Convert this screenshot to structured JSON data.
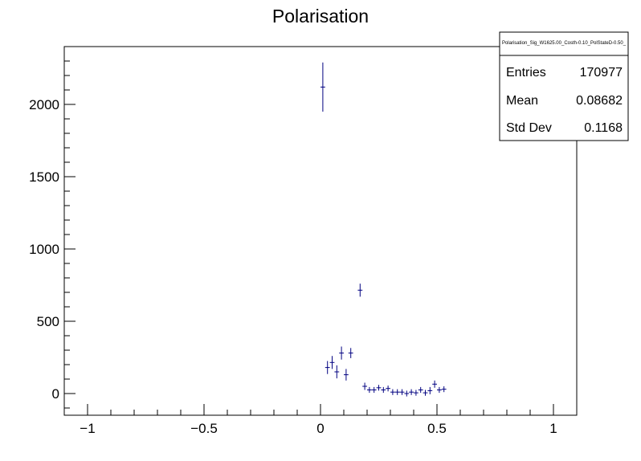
{
  "chart_data": {
    "type": "scatter",
    "title": "Polarisation",
    "xlabel": "",
    "ylabel": "",
    "xlim": [
      -1.1,
      1.1
    ],
    "ylim": [
      -150,
      2400
    ],
    "x_ticks": [
      {
        "value": -1,
        "label": "−1"
      },
      {
        "value": -0.5,
        "label": "−0.5"
      },
      {
        "value": 0,
        "label": "0"
      },
      {
        "value": 0.5,
        "label": "0.5"
      },
      {
        "value": 1,
        "label": "1"
      }
    ],
    "y_ticks": [
      {
        "value": 0,
        "label": "0"
      },
      {
        "value": 500,
        "label": "500"
      },
      {
        "value": 1000,
        "label": "1000"
      },
      {
        "value": 1500,
        "label": "1500"
      },
      {
        "value": 2000,
        "label": "2000"
      }
    ],
    "bin_width": 0.02,
    "series": [
      {
        "color": "#000080",
        "points": [
          {
            "x": 0.01,
            "y": 2120,
            "err": 170
          },
          {
            "x": 0.03,
            "y": 180,
            "err": 45
          },
          {
            "x": 0.05,
            "y": 215,
            "err": 45
          },
          {
            "x": 0.07,
            "y": 150,
            "err": 45
          },
          {
            "x": 0.09,
            "y": 280,
            "err": 45
          },
          {
            "x": 0.11,
            "y": 130,
            "err": 40
          },
          {
            "x": 0.13,
            "y": 280,
            "err": 35
          },
          {
            "x": 0.17,
            "y": 715,
            "err": 45
          },
          {
            "x": 0.19,
            "y": 50,
            "err": 25
          },
          {
            "x": 0.21,
            "y": 25,
            "err": 20
          },
          {
            "x": 0.23,
            "y": 25,
            "err": 20
          },
          {
            "x": 0.25,
            "y": 40,
            "err": 20
          },
          {
            "x": 0.27,
            "y": 25,
            "err": 20
          },
          {
            "x": 0.29,
            "y": 35,
            "err": 20
          },
          {
            "x": 0.31,
            "y": 10,
            "err": 20
          },
          {
            "x": 0.33,
            "y": 10,
            "err": 20
          },
          {
            "x": 0.35,
            "y": 10,
            "err": 20
          },
          {
            "x": 0.37,
            "y": 0,
            "err": 20
          },
          {
            "x": 0.39,
            "y": 10,
            "err": 20
          },
          {
            "x": 0.41,
            "y": 5,
            "err": 20
          },
          {
            "x": 0.43,
            "y": 25,
            "err": 20
          },
          {
            "x": 0.45,
            "y": 5,
            "err": 20
          },
          {
            "x": 0.47,
            "y": 20,
            "err": 25
          },
          {
            "x": 0.49,
            "y": 65,
            "err": 25
          },
          {
            "x": 0.51,
            "y": 25,
            "err": 20
          },
          {
            "x": 0.53,
            "y": 30,
            "err": 20
          }
        ]
      }
    ],
    "stats": {
      "name": "Polarisation_Sig_W1625.00_Costh-0.10_PolStateD-0.50_",
      "rows": [
        {
          "label": "Entries",
          "value": "170977"
        },
        {
          "label": "Mean",
          "value": "0.08682"
        },
        {
          "label": "Std Dev",
          "value": "0.1168"
        }
      ]
    }
  }
}
